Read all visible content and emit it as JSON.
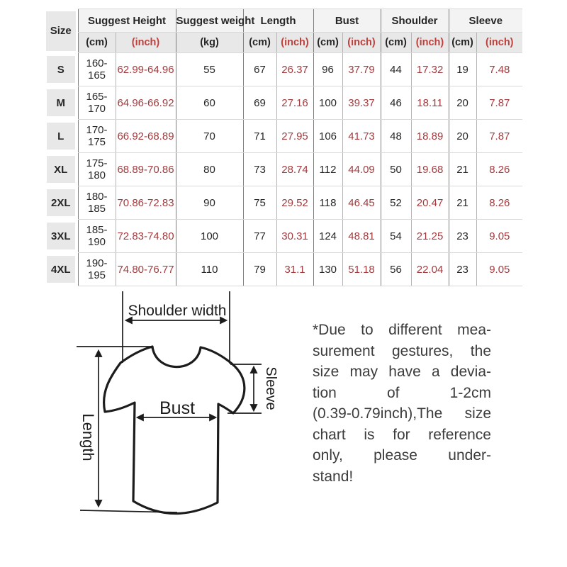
{
  "table": {
    "groups": [
      {
        "label": "Size",
        "units": []
      },
      {
        "label": "Suggest Height",
        "units": [
          "(cm)",
          "(inch)"
        ]
      },
      {
        "label": "Suggest weight",
        "units": [
          "(kg)"
        ]
      },
      {
        "label": "Length",
        "units": [
          "(cm)",
          "(inch)"
        ]
      },
      {
        "label": "Bust",
        "units": [
          "(cm)",
          "(inch)"
        ]
      },
      {
        "label": "Shoulder",
        "units": [
          "(cm)",
          "(inch)"
        ]
      },
      {
        "label": "Sleeve",
        "units": [
          "(cm)",
          "(inch)"
        ]
      }
    ],
    "rows": [
      [
        "S",
        "160-165",
        "62.99-64.96",
        "55",
        "67",
        "26.37",
        "96",
        "37.79",
        "44",
        "17.32",
        "19",
        "7.48"
      ],
      [
        "M",
        "165-170",
        "64.96-66.92",
        "60",
        "69",
        "27.16",
        "100",
        "39.37",
        "46",
        "18.11",
        "20",
        "7.87"
      ],
      [
        "L",
        "170-175",
        "66.92-68.89",
        "70",
        "71",
        "27.95",
        "106",
        "41.73",
        "48",
        "18.89",
        "20",
        "7.87"
      ],
      [
        "XL",
        "175-180",
        "68.89-70.86",
        "80",
        "73",
        "28.74",
        "112",
        "44.09",
        "50",
        "19.68",
        "21",
        "8.26"
      ],
      [
        "2XL",
        "180-185",
        "70.86-72.83",
        "90",
        "75",
        "29.52",
        "118",
        "46.45",
        "52",
        "20.47",
        "21",
        "8.26"
      ],
      [
        "3XL",
        "185-190",
        "72.83-74.80",
        "100",
        "77",
        "30.31",
        "124",
        "48.81",
        "54",
        "21.25",
        "23",
        "9.05"
      ],
      [
        "4XL",
        "190-195",
        "74.80-76.77",
        "110",
        "79",
        "31.1",
        "130",
        "51.18",
        "56",
        "22.04",
        "23",
        "9.05"
      ]
    ]
  },
  "diagram": {
    "shoulder_label": "Shoulder width",
    "bust_label": "Bust",
    "sleeve_label": "Sleeve",
    "length_label": "Length"
  },
  "note": {
    "lines": [
      "*Due to different mea-",
      "surement gestures, the",
      "size may have a devia-",
      "tion of 1-2cm",
      "(0.39-0.79inch),The size",
      "chart is for reference",
      "only, please under-",
      "stand!"
    ]
  },
  "colors": {
    "inch_text": "#a33b3e",
    "inch_header_text": "#c0403c",
    "body_text": "#262626",
    "note_text": "#3c3c3c",
    "chip_bg": "#e8e8e8",
    "header_row1_bg": "#f3f3f3",
    "header_row2_bg": "#e8e8e8",
    "line_dark": "#7f7f7f",
    "line_light": "#b5b5b5",
    "line_row": "#d9d9d9",
    "diagram_line": "#1c1c1c"
  }
}
